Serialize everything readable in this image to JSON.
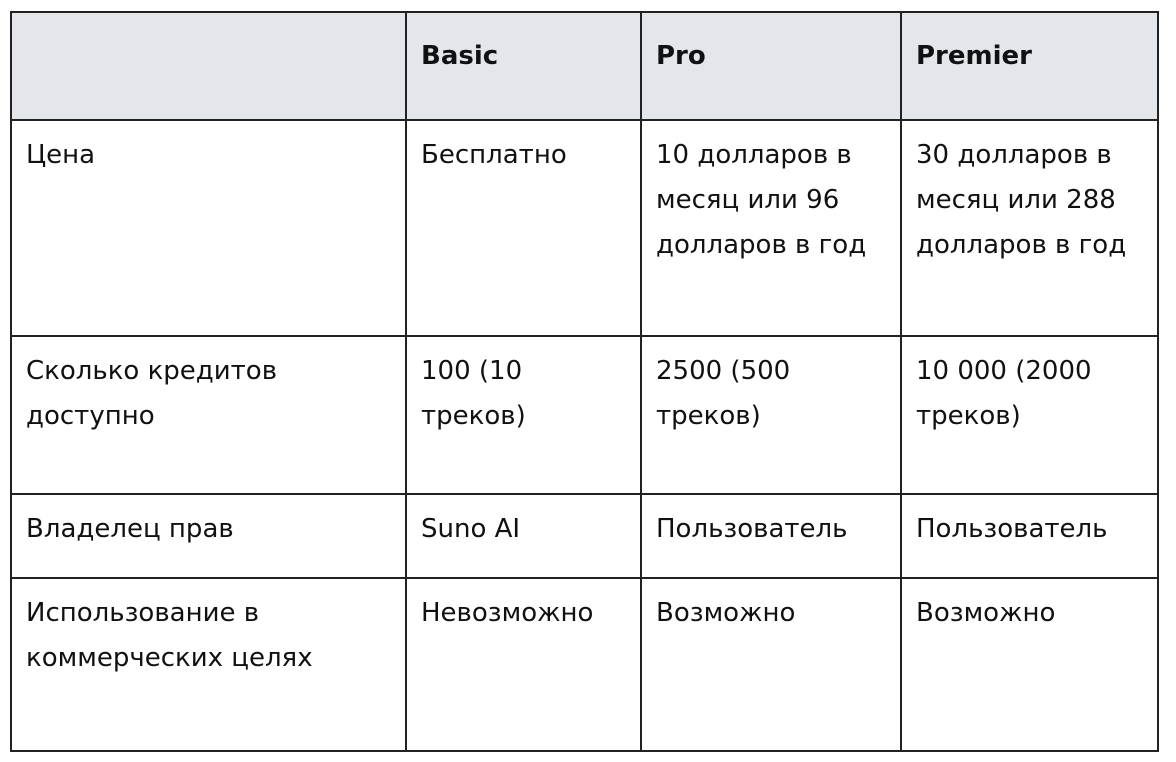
{
  "header": [
    "",
    "Basic",
    "Pro",
    "Premier"
  ],
  "rows": [
    {
      "label": "Цена",
      "cells": [
        "Бесплатно",
        "10 долларов в месяц или 96 долларов в год",
        "30 долларов в месяц или 288 долларов в год"
      ]
    },
    {
      "label": "Сколько кредитов доступно",
      "cells": [
        "100 (10 треков)",
        "2500 (500 треков)",
        "10 000 (2000 треков)"
      ]
    },
    {
      "label": "Владелец прав",
      "cells": [
        "Suno AI",
        "Пользователь",
        "Пользователь"
      ]
    },
    {
      "label": "Использование в коммерческих целях",
      "cells": [
        "Невозможно",
        "Возможно",
        "Возможно"
      ]
    }
  ],
  "colors": {
    "header_bg": "#e3e6ea",
    "border": "#222222"
  }
}
